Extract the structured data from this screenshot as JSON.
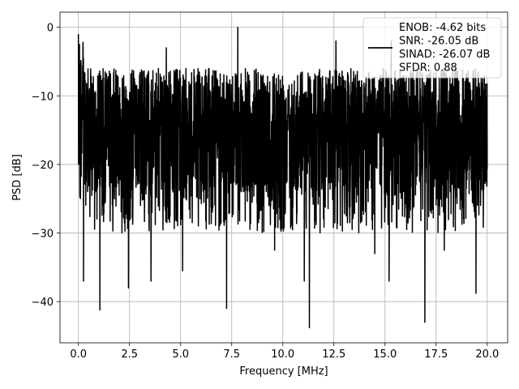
{
  "chart_data": {
    "type": "line",
    "title": "",
    "xlabel": "Frequency [MHz]",
    "ylabel": "PSD [dB]",
    "xlim": [
      -0.9,
      21.0
    ],
    "ylim": [
      -46.0,
      2.2
    ],
    "xticks": [
      0.0,
      2.5,
      5.0,
      7.5,
      10.0,
      12.5,
      15.0,
      17.5,
      20.0
    ],
    "xtick_labels": [
      "0.0",
      "2.5",
      "5.0",
      "7.5",
      "10.0",
      "12.5",
      "15.0",
      "17.5",
      "20.0"
    ],
    "yticks": [
      0,
      -10,
      -20,
      -30,
      -40
    ],
    "ytick_labels": [
      "0",
      "−10",
      "−20",
      "−30",
      "−40"
    ],
    "grid": true,
    "legend_position": "top-right",
    "series_color": "#000000",
    "legend_lines": [
      "ENOB: -4.62 bits",
      "SNR: -26.05 dB",
      "SINAD: -26.07 dB",
      "SFDR: 0.88"
    ],
    "series": [
      {
        "name": "ENOB: -4.62 bits\nSNR: -26.05 dB\nSINAD: -26.07 dB\nSFDR: 0.88",
        "x_start": 0.0,
        "x_end": 20.0,
        "description_visible": "dense noise floor roughly between -30 and -5 dB",
        "peaks": [
          {
            "x": 0.0,
            "y": -1.0
          },
          {
            "x": 0.05,
            "y": -2.5
          },
          {
            "x": 7.8,
            "y": 0.0
          },
          {
            "x": 4.3,
            "y": -3.0
          },
          {
            "x": 12.6,
            "y": -2.0
          },
          {
            "x": 15.3,
            "y": -2.0
          }
        ],
        "dips": [
          {
            "x": 0.25,
            "y": -37.0
          },
          {
            "x": 1.05,
            "y": -41.2
          },
          {
            "x": 2.45,
            "y": -38.0
          },
          {
            "x": 3.55,
            "y": -37.0
          },
          {
            "x": 5.1,
            "y": -35.5
          },
          {
            "x": 7.25,
            "y": -41.0
          },
          {
            "x": 9.6,
            "y": -32.5
          },
          {
            "x": 11.05,
            "y": -37.0
          },
          {
            "x": 11.3,
            "y": -43.8
          },
          {
            "x": 14.5,
            "y": -33.0
          },
          {
            "x": 15.2,
            "y": -37.0
          },
          {
            "x": 16.95,
            "y": -43.0
          },
          {
            "x": 17.9,
            "y": -32.5
          },
          {
            "x": 19.45,
            "y": -38.8
          }
        ]
      }
    ]
  }
}
